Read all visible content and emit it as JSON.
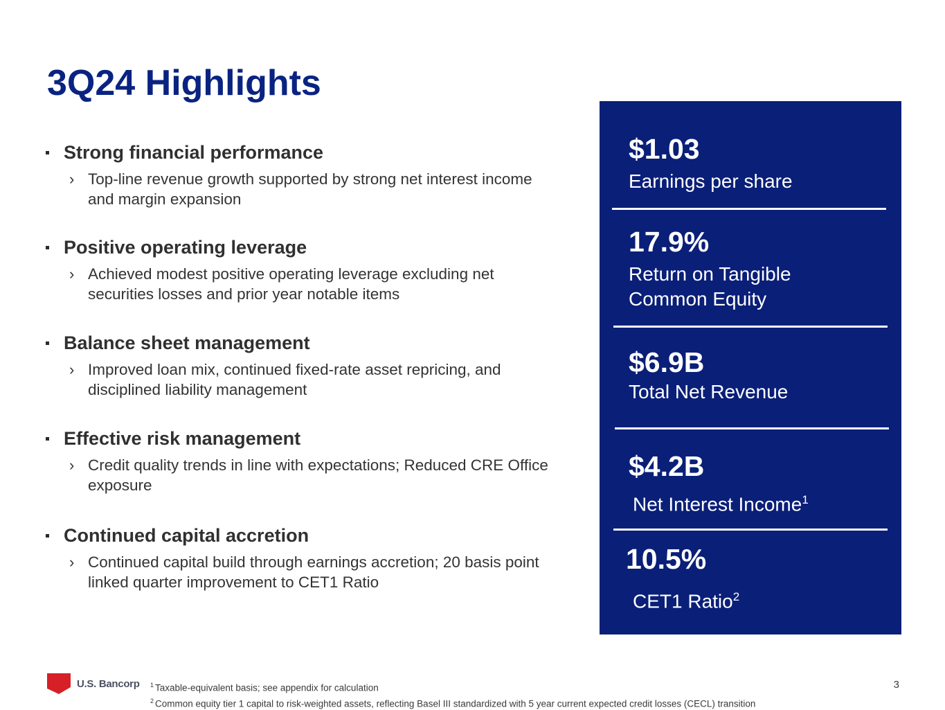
{
  "slide": {
    "title": "3Q24 Highlights",
    "page_number": "3"
  },
  "bullets": [
    {
      "title": "Strong financial performance",
      "sub": "Top-line revenue growth supported by strong net interest income and margin expansion"
    },
    {
      "title": "Positive operating leverage",
      "sub": "Achieved modest positive operating leverage excluding net securities losses and prior year notable items"
    },
    {
      "title": "Balance sheet management",
      "sub": "Improved loan mix, continued fixed-rate asset repricing, and disciplined liability management"
    },
    {
      "title": "Effective risk management",
      "sub": "Credit quality trends in line with expectations; Reduced CRE Office exposure"
    },
    {
      "title": "Continued capital accretion",
      "sub": "Continued capital build through earnings accretion; 20 basis point linked quarter improvement to CET1 Ratio"
    }
  ],
  "metrics": [
    {
      "value": "$1.03",
      "label": "Earnings per share"
    },
    {
      "value": "17.9%",
      "label": "Return on Tangible Common Equity"
    },
    {
      "value": "$6.9B",
      "label": "Total Net Revenue"
    },
    {
      "value": "$4.2B",
      "label": "Net Interest Income",
      "note": "1"
    },
    {
      "value": "10.5%",
      "label": "CET1 Ratio",
      "note": "2"
    }
  ],
  "footnotes": [
    {
      "mark": "1",
      "text": "Taxable-equivalent basis; see appendix for calculation"
    },
    {
      "mark": "2",
      "text": "Common equity tier 1 capital to risk-weighted assets, reflecting Basel III standardized with 5 year current expected credit losses (CECL) transition"
    }
  ],
  "logo": {
    "text": "U.S. Bancorp",
    "color": "#d61f26"
  },
  "colors": {
    "title": "#0a2382",
    "panel": "#0a1f78"
  }
}
